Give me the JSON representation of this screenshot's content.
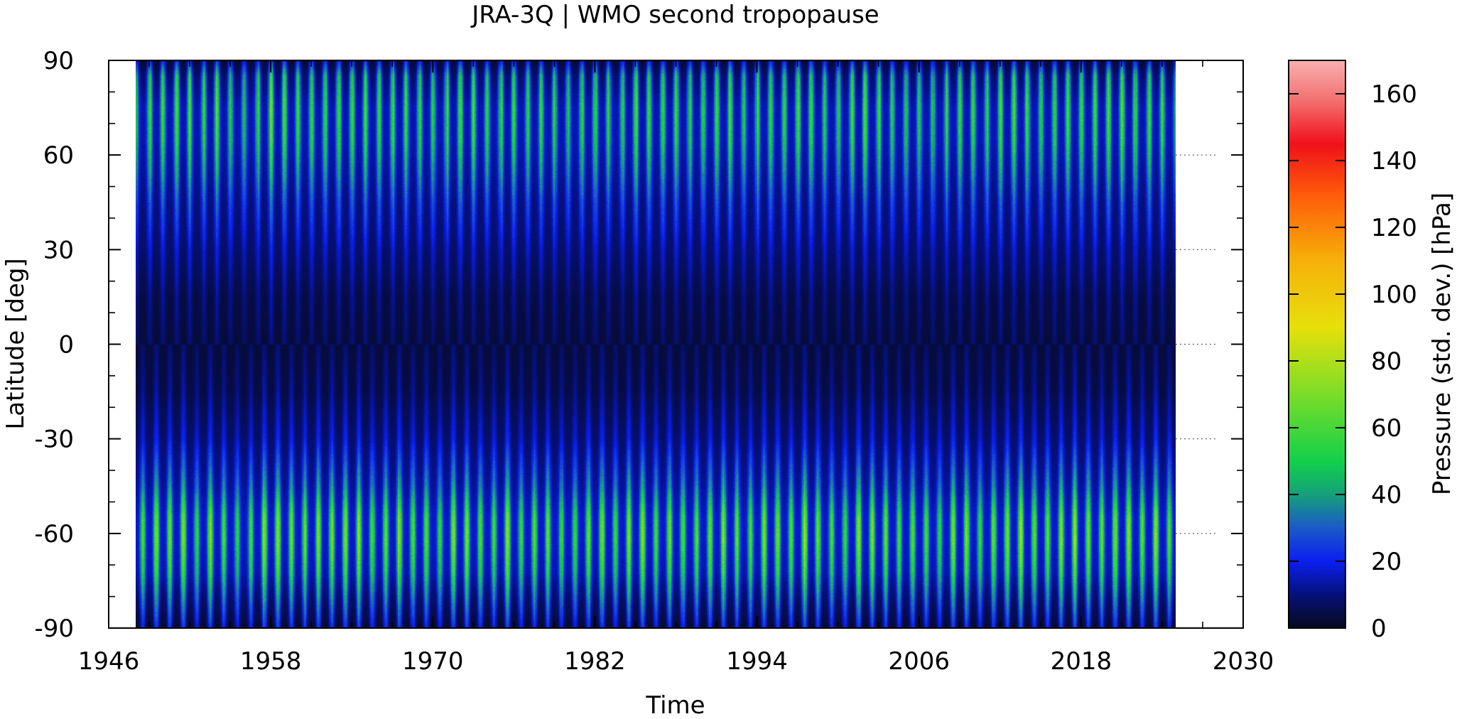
{
  "chart_data": {
    "type": "heatmap",
    "title": "JRA-3Q | WMO second tropopause",
    "xlabel": "Time",
    "ylabel": "Latitude [deg]",
    "colorbar_label": "Pressure (std. dev.) [hPa]",
    "xlim": [
      1946,
      2030
    ],
    "ylim": [
      -90,
      90
    ],
    "x_ticks": [
      "1946",
      "1958",
      "1970",
      "1982",
      "1994",
      "2006",
      "2018",
      "2030"
    ],
    "y_ticks": [
      "90",
      "60",
      "30",
      "0",
      "-30",
      "-60",
      "-90"
    ],
    "y_tick_values": [
      90,
      60,
      30,
      0,
      -30,
      -60,
      -90
    ],
    "colorbar_range": [
      0,
      170
    ],
    "colorbar_ticks": [
      "0",
      "20",
      "40",
      "60",
      "80",
      "100",
      "120",
      "140",
      "160"
    ],
    "colorbar_tick_values": [
      0,
      20,
      40,
      60,
      80,
      100,
      120,
      140,
      160
    ],
    "data_time_range": [
      1948,
      2025
    ],
    "dotted_gridlines_at_latitude": [
      60,
      30,
      0,
      -30,
      -60
    ],
    "dotted_gridlines_x_range": [
      2025,
      2028
    ],
    "colormap": [
      {
        "value": 0,
        "color": "#060a1e"
      },
      {
        "value": 10,
        "color": "#06107a"
      },
      {
        "value": 20,
        "color": "#0a1ff0"
      },
      {
        "value": 30,
        "color": "#1a5ac8"
      },
      {
        "value": 40,
        "color": "#16a07a"
      },
      {
        "value": 50,
        "color": "#12d04a"
      },
      {
        "value": 70,
        "color": "#7add28"
      },
      {
        "value": 90,
        "color": "#e6e00a"
      },
      {
        "value": 110,
        "color": "#f6b00a"
      },
      {
        "value": 130,
        "color": "#ff5a0a"
      },
      {
        "value": 145,
        "color": "#f0101a"
      },
      {
        "value": 158,
        "color": "#f47070"
      },
      {
        "value": 170,
        "color": "#f8b0b0"
      }
    ],
    "latitude_profile_std_dev_hpa": [
      {
        "lat": 90,
        "min": 2,
        "max": 22
      },
      {
        "lat": 85,
        "min": 8,
        "max": 48
      },
      {
        "lat": 75,
        "min": 14,
        "max": 55
      },
      {
        "lat": 65,
        "min": 14,
        "max": 52
      },
      {
        "lat": 55,
        "min": 12,
        "max": 42
      },
      {
        "lat": 45,
        "min": 10,
        "max": 30
      },
      {
        "lat": 30,
        "min": 8,
        "max": 18
      },
      {
        "lat": 15,
        "min": 4,
        "max": 12
      },
      {
        "lat": 0,
        "min": 3,
        "max": 9
      },
      {
        "lat": -15,
        "min": 4,
        "max": 13
      },
      {
        "lat": -30,
        "min": 8,
        "max": 20
      },
      {
        "lat": -45,
        "min": 12,
        "max": 40
      },
      {
        "lat": -55,
        "min": 16,
        "max": 62
      },
      {
        "lat": -62,
        "min": 16,
        "max": 65
      },
      {
        "lat": -72,
        "min": 14,
        "max": 55
      },
      {
        "lat": -80,
        "min": 8,
        "max": 40
      },
      {
        "lat": -90,
        "min": 2,
        "max": 22
      }
    ],
    "seasonal_cycle_period_years": 1
  }
}
